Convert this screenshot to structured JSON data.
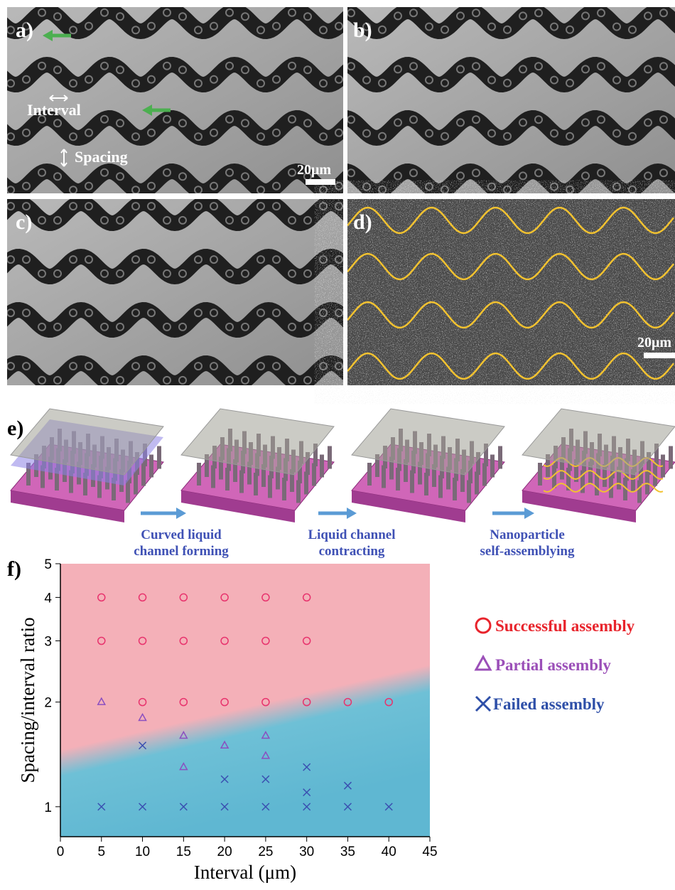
{
  "panels": {
    "a": {
      "label": "a)",
      "interval": "Interval",
      "spacing": "Spacing",
      "scale_bar": "20μm"
    },
    "b": {
      "label": "b)"
    },
    "c": {
      "label": "c)"
    },
    "d": {
      "label": "d)",
      "scale_bar": "20μm"
    }
  },
  "schematic": {
    "label": "e)",
    "steps": [
      [
        "Curved liquid",
        "channel forming"
      ],
      [
        "Liquid channel",
        "contracting"
      ],
      [
        "Nanoparticle",
        "self-assemblying"
      ]
    ]
  },
  "chart_data": {
    "type": "scatter",
    "panel_label": "f)",
    "x_label": "Interval (μm)",
    "y_label": "Spacing/interval ratio",
    "xlim": [
      0,
      45
    ],
    "xticks": [
      0,
      5,
      10,
      15,
      20,
      25,
      30,
      35,
      40,
      45
    ],
    "ylim": [
      0.82,
      5
    ],
    "yticks": [
      1,
      2,
      3,
      4,
      5
    ],
    "log_y": true,
    "legend_position": "right",
    "series": [
      {
        "name": "Successful assembly",
        "color": "#e8336d",
        "legend_color": "#e8242c",
        "marker": "circle",
        "x": [
          5,
          10,
          15,
          20,
          25,
          30,
          5,
          10,
          15,
          20,
          25,
          30,
          10,
          15,
          20,
          25,
          30,
          35,
          40
        ],
        "y": [
          4,
          4,
          4,
          4,
          4,
          4,
          3,
          3,
          3,
          3,
          3,
          3,
          2,
          2,
          2,
          2,
          2,
          2,
          2
        ]
      },
      {
        "name": "Partial assembly",
        "color": "#8b4fc0",
        "legend_color": "#9b4fb8",
        "marker": "triangle",
        "x": [
          5,
          10,
          15,
          15,
          20,
          25,
          25
        ],
        "y": [
          2,
          1.8,
          1.6,
          1.3,
          1.5,
          1.6,
          1.4
        ]
      },
      {
        "name": "Failed assembly",
        "color": "#3a4fb0",
        "legend_color": "#2e4fa8",
        "marker": "cross",
        "x": [
          10,
          20,
          25,
          30,
          30,
          35,
          5,
          10,
          15,
          20,
          25,
          30,
          35,
          40
        ],
        "y": [
          1.5,
          1.2,
          1.2,
          1.3,
          1.1,
          1.15,
          1,
          1,
          1,
          1,
          1,
          1,
          1,
          1
        ]
      }
    ]
  }
}
